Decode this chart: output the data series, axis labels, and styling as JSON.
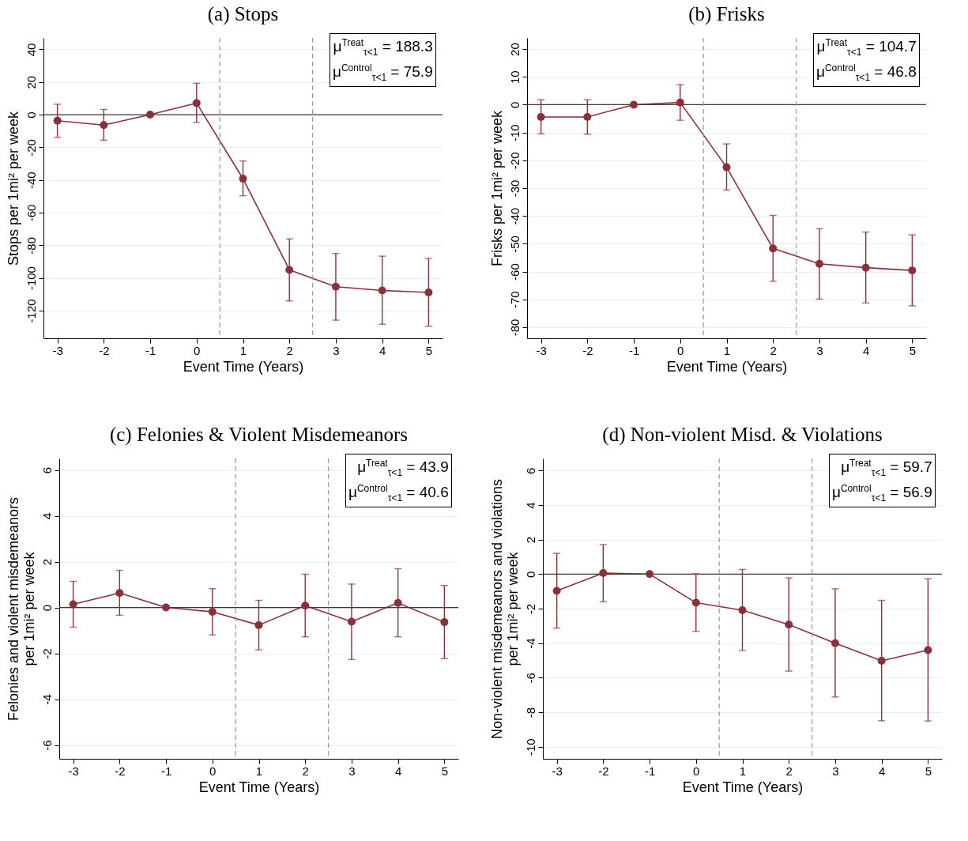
{
  "chart_data": [
    {
      "type": "line",
      "title": "(a) Stops",
      "xlabel": "Event Time (Years)",
      "ylabel": "Stops per 1mi² per week",
      "x": [
        -3,
        -2,
        -1,
        0,
        1,
        2,
        3,
        4,
        5
      ],
      "xlim": [
        -3.3,
        5.3
      ],
      "xticks": [
        -3,
        -2,
        -1,
        0,
        1,
        2,
        3,
        4,
        5
      ],
      "ylim": [
        -137,
        47
      ],
      "yticks": [
        -120,
        -100,
        -80,
        -60,
        -40,
        -20,
        0,
        20,
        40
      ],
      "grid": "y",
      "marker": "circle",
      "line_style": "solid",
      "series": [
        {
          "color": "#8c2f3c",
          "values": [
            -3.7,
            -6.4,
            0,
            7.1,
            -39.2,
            -95.1,
            -105.4,
            -107.7,
            -108.9
          ],
          "errors": [
            [
              -13.9,
              6.4
            ],
            [
              -15.6,
              3.2
            ],
            null,
            [
              -4.7,
              19.2
            ],
            [
              -49.7,
              -28.4
            ],
            [
              -114.1,
              -76.1
            ],
            [
              -125.9,
              -85
            ],
            [
              -128.4,
              -86.7
            ],
            [
              -129.6,
              -88.1
            ]
          ]
        }
      ],
      "ref_lines": [
        {
          "axis": "y",
          "value": 0,
          "color": "#4a3236",
          "line_style": "solid"
        },
        {
          "axis": "x",
          "value": 0.5,
          "color": "#9e9e9e",
          "line_style": "dashed"
        },
        {
          "axis": "x",
          "value": 2.5,
          "color": "#9e9e9e",
          "line_style": "dashed"
        }
      ],
      "annotations": [
        "μ$^{Treat}$$_{τ<1}$ = 188.3",
        "μ$^{Control}$$_{τ<1}$ = 75.9"
      ]
    },
    {
      "type": "line",
      "title": "(b) Frisks",
      "xlabel": "Event Time (Years)",
      "ylabel": "Frisks per 1mi² per week",
      "x": [
        -3,
        -2,
        -1,
        0,
        1,
        2,
        3,
        4,
        5
      ],
      "xlim": [
        -3.3,
        5.3
      ],
      "xticks": [
        -3,
        -2,
        -1,
        0,
        1,
        2,
        3,
        4,
        5
      ],
      "ylim": [
        -84,
        24
      ],
      "yticks": [
        -80,
        -70,
        -60,
        -50,
        -40,
        -30,
        -20,
        -10,
        0,
        10,
        20
      ],
      "grid": "y",
      "marker": "circle",
      "line_style": "solid",
      "series": [
        {
          "color": "#8c2f3c",
          "values": [
            -4.4,
            -4.4,
            0,
            0.8,
            -22.5,
            -51.7,
            -57.2,
            -58.6,
            -59.6
          ],
          "errors": [
            [
              -10.5,
              1.8
            ],
            [
              -10.6,
              1.8
            ],
            null,
            [
              -5.6,
              7.2
            ],
            [
              -30.7,
              -14.1
            ],
            [
              -63.5,
              -39.8
            ],
            [
              -69.9,
              -44.6
            ],
            [
              -71.3,
              -45.8
            ],
            [
              -72.3,
              -46.8
            ]
          ]
        }
      ],
      "ref_lines": [
        {
          "axis": "y",
          "value": 0,
          "color": "#4a3236",
          "line_style": "solid"
        },
        {
          "axis": "x",
          "value": 0.5,
          "color": "#9e9e9e",
          "line_style": "dashed"
        },
        {
          "axis": "x",
          "value": 2.5,
          "color": "#9e9e9e",
          "line_style": "dashed"
        }
      ],
      "annotations": [
        "μ$^{Treat}$$_{τ<1}$ = 104.7",
        "μ$^{Control}$$_{τ<1}$ = 46.8"
      ]
    },
    {
      "type": "line",
      "title": "(c) Felonies & Violent Misdemeanors",
      "xlabel": "Event Time (Years)",
      "ylabel": "Felonies and violent misdemeanors\nper 1mi² per week",
      "x": [
        -3,
        -2,
        -1,
        0,
        1,
        2,
        3,
        4,
        5
      ],
      "xlim": [
        -3.3,
        5.3
      ],
      "xticks": [
        -3,
        -2,
        -1,
        0,
        1,
        2,
        3,
        4,
        5
      ],
      "ylim": [
        -6.6,
        6.5
      ],
      "yticks": [
        -6,
        -4,
        -2,
        0,
        2,
        4,
        6
      ],
      "grid": "y",
      "marker": "circle",
      "line_style": "solid",
      "series": [
        {
          "color": "#8c2f3c",
          "values": [
            0.14,
            0.63,
            0,
            -0.19,
            -0.77,
            0.08,
            -0.62,
            0.2,
            -0.64
          ],
          "errors": [
            [
              -0.86,
              1.14
            ],
            [
              -0.34,
              1.62
            ],
            null,
            [
              -1.2,
              0.82
            ],
            [
              -1.85,
              0.31
            ],
            [
              -1.28,
              1.45
            ],
            [
              -2.27,
              1.02
            ],
            [
              -1.28,
              1.69
            ],
            [
              -2.23,
              0.96
            ]
          ]
        }
      ],
      "ref_lines": [
        {
          "axis": "y",
          "value": 0,
          "color": "#4a3236",
          "line_style": "solid"
        },
        {
          "axis": "x",
          "value": 0.5,
          "color": "#9e9e9e",
          "line_style": "dashed"
        },
        {
          "axis": "x",
          "value": 2.5,
          "color": "#9e9e9e",
          "line_style": "dashed"
        }
      ],
      "annotations": [
        "μ$^{Treat}$$_{τ<1}$ = 43.9",
        "μ$^{Control}$$_{τ<1}$ = 40.6"
      ]
    },
    {
      "type": "line",
      "title": "(d) Non-violent Misd. & Violations",
      "xlabel": "Event Time (Years)",
      "ylabel": "Non-violent misdemeanors and violations\nper 1mi² per week",
      "x": [
        -3,
        -2,
        -1,
        0,
        1,
        2,
        3,
        4,
        5
      ],
      "xlim": [
        -3.3,
        5.3
      ],
      "xticks": [
        -3,
        -2,
        -1,
        0,
        1,
        2,
        3,
        4,
        5
      ],
      "ylim": [
        -10.7,
        6.7
      ],
      "yticks": [
        -10,
        -8,
        -6,
        -4,
        -2,
        0,
        2,
        4,
        6
      ],
      "grid": "y",
      "marker": "circle",
      "line_style": "solid",
      "series": [
        {
          "color": "#8c2f3c",
          "values": [
            -0.97,
            0.06,
            0,
            -1.66,
            -2.09,
            -2.93,
            -4.0,
            -5.02,
            -4.4
          ],
          "errors": [
            [
              -3.13,
              1.2
            ],
            [
              -1.6,
              1.71
            ],
            null,
            [
              -3.32,
              0.02
            ],
            [
              -4.43,
              0.27
            ],
            [
              -5.62,
              -0.22
            ],
            [
              -7.12,
              -0.85
            ],
            [
              -8.5,
              -1.52
            ],
            [
              -8.51,
              -0.27
            ]
          ]
        }
      ],
      "ref_lines": [
        {
          "axis": "y",
          "value": 0,
          "color": "#4a3236",
          "line_style": "solid"
        },
        {
          "axis": "x",
          "value": 0.5,
          "color": "#9e9e9e",
          "line_style": "dashed"
        },
        {
          "axis": "x",
          "value": 2.5,
          "color": "#9e9e9e",
          "line_style": "dashed"
        }
      ],
      "annotations": [
        "μ$^{Treat}$$_{τ<1}$ = 59.7",
        "μ$^{Control}$$_{τ<1}$ = 56.9"
      ]
    }
  ]
}
